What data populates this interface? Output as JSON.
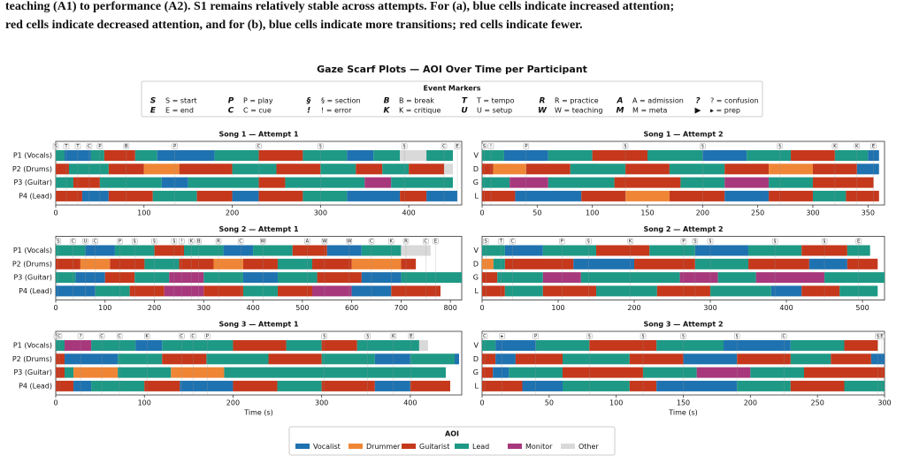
{
  "caption": [
    "teaching (A1) to performance (A2). S1 remains relatively stable across attempts. For (a), blue cells indicate increased attention;",
    "red cells indicate decreased attention, and for (b), blue cells indicate more transitions; red cells indicate fewer."
  ],
  "title": "Gaze Scarf Plots — AOI Over Time per Participant",
  "event_legend": {
    "title": "Event Markers",
    "items": [
      {
        "symbol": "S",
        "label": "S = start"
      },
      {
        "symbol": "P",
        "label": "P = play"
      },
      {
        "symbol": "§",
        "label": "§ = section"
      },
      {
        "symbol": "B",
        "label": "B = break"
      },
      {
        "symbol": "T",
        "label": "T = tempo"
      },
      {
        "symbol": "R",
        "label": "R = practice"
      },
      {
        "symbol": "A",
        "label": "A = admission"
      },
      {
        "symbol": "?",
        "label": "? = confusion"
      },
      {
        "symbol": "E",
        "label": "E = end"
      },
      {
        "symbol": "C",
        "label": "C = cue"
      },
      {
        "symbol": "!",
        "label": "! = error"
      },
      {
        "symbol": "K",
        "label": "K = critique"
      },
      {
        "symbol": "U",
        "label": "U = setup"
      },
      {
        "symbol": "W",
        "label": "W = teaching"
      },
      {
        "symbol": "M",
        "label": "M = meta"
      },
      {
        "symbol": "▶",
        "label": "▸ = prep"
      }
    ]
  },
  "aoi_legend": {
    "title": "AOI",
    "names": [
      "Vocalist",
      "Drummer",
      "Guitarist",
      "Lead",
      "Monitor",
      "Other"
    ],
    "colors": [
      "#1f72b0",
      "#ef8636",
      "#c5381c",
      "#1e9985",
      "#a8387c",
      "#d9d9d9"
    ]
  },
  "chart_data": [
    {
      "type": "scarf",
      "title": "Song 1 — Attempt 1",
      "xlim": [
        0,
        460
      ],
      "xticks": [
        0,
        100,
        200,
        300,
        400
      ],
      "events": {
        "t": [
          0,
          12,
          25,
          38,
          50,
          80,
          135,
          230,
          300,
          395,
          440,
          455
        ],
        "code": [
          "S",
          "T",
          "T",
          "C",
          "P",
          "B",
          "P",
          "C",
          "§",
          "§",
          "C",
          "E"
        ]
      },
      "rows": [
        {
          "name": "P1 (Vocals)",
          "t": [
            0,
            10,
            40,
            55,
            90,
            115,
            180,
            230,
            280,
            330,
            360,
            390,
            420,
            450
          ],
          "aoi": [
            3,
            0,
            3,
            2,
            3,
            0,
            3,
            2,
            3,
            0,
            3,
            5,
            3
          ]
        },
        {
          "name": "P2 (Drums)",
          "t": [
            0,
            15,
            60,
            100,
            140,
            200,
            250,
            300,
            340,
            370,
            400,
            440,
            450
          ],
          "aoi": [
            2,
            3,
            2,
            1,
            2,
            3,
            2,
            3,
            2,
            3,
            2,
            5
          ]
        },
        {
          "name": "P3 (Guitar)",
          "t": [
            0,
            20,
            50,
            120,
            150,
            230,
            260,
            350,
            380,
            450
          ],
          "aoi": [
            3,
            2,
            3,
            0,
            3,
            2,
            3,
            4,
            3
          ]
        },
        {
          "name": "P4 (Lead)",
          "t": [
            0,
            30,
            60,
            110,
            160,
            200,
            230,
            280,
            330,
            390,
            420,
            455
          ],
          "aoi": [
            2,
            0,
            2,
            3,
            2,
            0,
            2,
            3,
            0,
            2,
            0
          ]
        }
      ]
    },
    {
      "type": "scarf",
      "title": "Song 1 — Attempt 2",
      "xlim": [
        0,
        365
      ],
      "xticks": [
        0,
        50,
        100,
        150,
        200,
        250,
        300,
        350
      ],
      "events": {
        "t": [
          2,
          8,
          40,
          130,
          200,
          270,
          320,
          340,
          355
        ],
        "code": [
          "S",
          "!",
          "P",
          "§",
          "§",
          "§",
          "K",
          "K",
          "E"
        ]
      },
      "rows": [
        {
          "name": "V",
          "t": [
            0,
            20,
            60,
            100,
            150,
            200,
            240,
            280,
            320,
            350,
            360
          ],
          "aoi": [
            3,
            0,
            3,
            2,
            3,
            0,
            3,
            2,
            3,
            0
          ]
        },
        {
          "name": "D",
          "t": [
            0,
            10,
            40,
            80,
            130,
            170,
            220,
            260,
            300,
            340,
            360
          ],
          "aoi": [
            2,
            1,
            2,
            3,
            2,
            3,
            2,
            1,
            2,
            0
          ]
        },
        {
          "name": "G",
          "t": [
            0,
            25,
            60,
            120,
            180,
            220,
            260,
            300,
            355
          ],
          "aoi": [
            3,
            4,
            3,
            2,
            3,
            4,
            3,
            2
          ]
        },
        {
          "name": "L",
          "t": [
            0,
            30,
            90,
            130,
            170,
            220,
            260,
            300,
            330,
            360
          ],
          "aoi": [
            2,
            0,
            2,
            1,
            2,
            0,
            2,
            3,
            2
          ]
        }
      ]
    },
    {
      "type": "scarf",
      "title": "Song 2 — Attempt 1",
      "xlim": [
        0,
        823
      ],
      "xticks": [
        0,
        100,
        200,
        300,
        400,
        500,
        600,
        700,
        800
      ],
      "events": {
        "t": [
          5,
          35,
          60,
          80,
          130,
          160,
          200,
          240,
          255,
          275,
          290,
          330,
          375,
          420,
          510,
          545,
          595,
          640,
          680,
          710,
          750,
          770
        ],
        "code": [
          "S",
          "C",
          "U",
          "C",
          "P",
          "§",
          "§",
          "§",
          "!",
          "K",
          "B",
          "R",
          "C",
          "W",
          "A",
          "W",
          "W",
          "C",
          "K",
          "R",
          "C",
          "E"
        ]
      },
      "rows": [
        {
          "name": "P1 (Vocals)",
          "t": [
            0,
            60,
            120,
            200,
            260,
            340,
            400,
            480,
            550,
            620,
            700,
            760
          ],
          "aoi": [
            3,
            0,
            3,
            2,
            3,
            0,
            3,
            2,
            0,
            3,
            5
          ]
        },
        {
          "name": "P2 (Drums)",
          "t": [
            0,
            50,
            110,
            180,
            250,
            320,
            380,
            450,
            520,
            600,
            700,
            730
          ],
          "aoi": [
            2,
            1,
            2,
            3,
            2,
            1,
            2,
            3,
            2,
            1,
            2
          ]
        },
        {
          "name": "P3 (Guitar)",
          "t": [
            0,
            40,
            100,
            160,
            230,
            300,
            380,
            450,
            530,
            620,
            700,
            823
          ],
          "aoi": [
            3,
            0,
            2,
            3,
            4,
            3,
            0,
            3,
            2,
            0,
            3
          ]
        },
        {
          "name": "P4 (Lead)",
          "t": [
            0,
            80,
            150,
            220,
            300,
            380,
            450,
            520,
            600,
            680,
            780
          ],
          "aoi": [
            0,
            3,
            2,
            4,
            2,
            3,
            2,
            4,
            0,
            2
          ]
        }
      ]
    },
    {
      "type": "scarf",
      "title": "Song 2 — Attempt 2",
      "xlim": [
        0,
        529
      ],
      "xticks": [
        0,
        100,
        200,
        300,
        400,
        500
      ],
      "events": {
        "t": [
          5,
          25,
          40,
          105,
          140,
          195,
          265,
          280,
          300,
          385,
          450,
          495
        ],
        "code": [
          "S",
          "T",
          "C",
          "P",
          "§",
          "K",
          "P",
          "S",
          "§",
          "§",
          "§",
          "E"
        ]
      },
      "rows": [
        {
          "name": "V",
          "t": [
            0,
            30,
            80,
            150,
            220,
            280,
            350,
            420,
            480,
            510
          ],
          "aoi": [
            3,
            0,
            3,
            2,
            3,
            0,
            3,
            2,
            3
          ]
        },
        {
          "name": "D",
          "t": [
            0,
            15,
            30,
            120,
            200,
            280,
            350,
            430,
            480,
            520
          ],
          "aoi": [
            1,
            3,
            2,
            0,
            2,
            3,
            2,
            0,
            2
          ]
        },
        {
          "name": "G",
          "t": [
            0,
            20,
            80,
            130,
            260,
            310,
            360,
            450,
            529
          ],
          "aoi": [
            2,
            3,
            4,
            3,
            4,
            3,
            4,
            3
          ]
        },
        {
          "name": "L",
          "t": [
            0,
            30,
            80,
            150,
            230,
            300,
            380,
            420,
            470,
            520
          ],
          "aoi": [
            2,
            3,
            2,
            3,
            2,
            3,
            0,
            2,
            3
          ]
        }
      ]
    },
    {
      "type": "scarf",
      "title": "Song 3 — Attempt 1",
      "xlim": [
        0,
        458
      ],
      "xticks": [
        0,
        100,
        200,
        300,
        400
      ],
      "xlabel": "Time (s)",
      "events": {
        "t": [
          1,
          4,
          28,
          52,
          72,
          103,
          142,
          155,
          171,
          303,
          352,
          381,
          401
        ],
        "code": [
          "S",
          "C",
          "?",
          "C",
          "C",
          "K",
          "C",
          "C",
          "P",
          "§",
          "§",
          "K",
          "E"
        ]
      },
      "rows": [
        {
          "name": "P1 (Vocals)",
          "t": [
            0,
            10,
            40,
            90,
            120,
            200,
            260,
            300,
            340,
            410,
            420
          ],
          "aoi": [
            3,
            4,
            3,
            0,
            3,
            2,
            3,
            2,
            3,
            5
          ]
        },
        {
          "name": "P2 (Drums)",
          "t": [
            0,
            10,
            70,
            120,
            170,
            240,
            300,
            360,
            400,
            450,
            455
          ],
          "aoi": [
            2,
            0,
            3,
            2,
            3,
            2,
            3,
            0,
            3,
            0
          ]
        },
        {
          "name": "P3 (Guitar)",
          "t": [
            0,
            10,
            20,
            70,
            130,
            190,
            440
          ],
          "aoi": [
            2,
            3,
            1,
            3,
            1,
            3
          ]
        },
        {
          "name": "P4 (Lead)",
          "t": [
            0,
            20,
            40,
            100,
            140,
            200,
            250,
            300,
            360,
            400,
            445
          ],
          "aoi": [
            2,
            0,
            3,
            2,
            0,
            2,
            3,
            2,
            0,
            2
          ]
        }
      ]
    },
    {
      "type": "scarf",
      "title": "Song 3 — Attempt 2",
      "xlim": [
        0,
        300
      ],
      "xticks": [
        0,
        50,
        100,
        150,
        200,
        250,
        300
      ],
      "xlabel": "Time (s)",
      "events": {
        "t": [
          2,
          15,
          40,
          80,
          120,
          150,
          190,
          225,
          295,
          298
        ],
        "code": [
          "C",
          "▸",
          "P",
          "§",
          "§",
          "§",
          "§",
          "C",
          "§",
          "E"
        ]
      },
      "rows": [
        {
          "name": "V",
          "t": [
            0,
            10,
            40,
            80,
            130,
            180,
            230,
            270,
            295
          ],
          "aoi": [
            3,
            0,
            3,
            2,
            3,
            0,
            3,
            2
          ]
        },
        {
          "name": "D",
          "t": [
            0,
            10,
            25,
            60,
            110,
            150,
            190,
            230,
            260,
            290,
            300
          ],
          "aoi": [
            2,
            0,
            2,
            3,
            2,
            0,
            2,
            3,
            2,
            0
          ]
        },
        {
          "name": "G",
          "t": [
            0,
            8,
            20,
            60,
            120,
            160,
            200,
            240,
            300
          ],
          "aoi": [
            2,
            0,
            3,
            2,
            3,
            4,
            3,
            2
          ]
        },
        {
          "name": "L",
          "t": [
            0,
            30,
            60,
            110,
            130,
            190,
            230,
            270,
            300
          ],
          "aoi": [
            2,
            0,
            3,
            2,
            0,
            3,
            2,
            3
          ]
        }
      ]
    }
  ]
}
